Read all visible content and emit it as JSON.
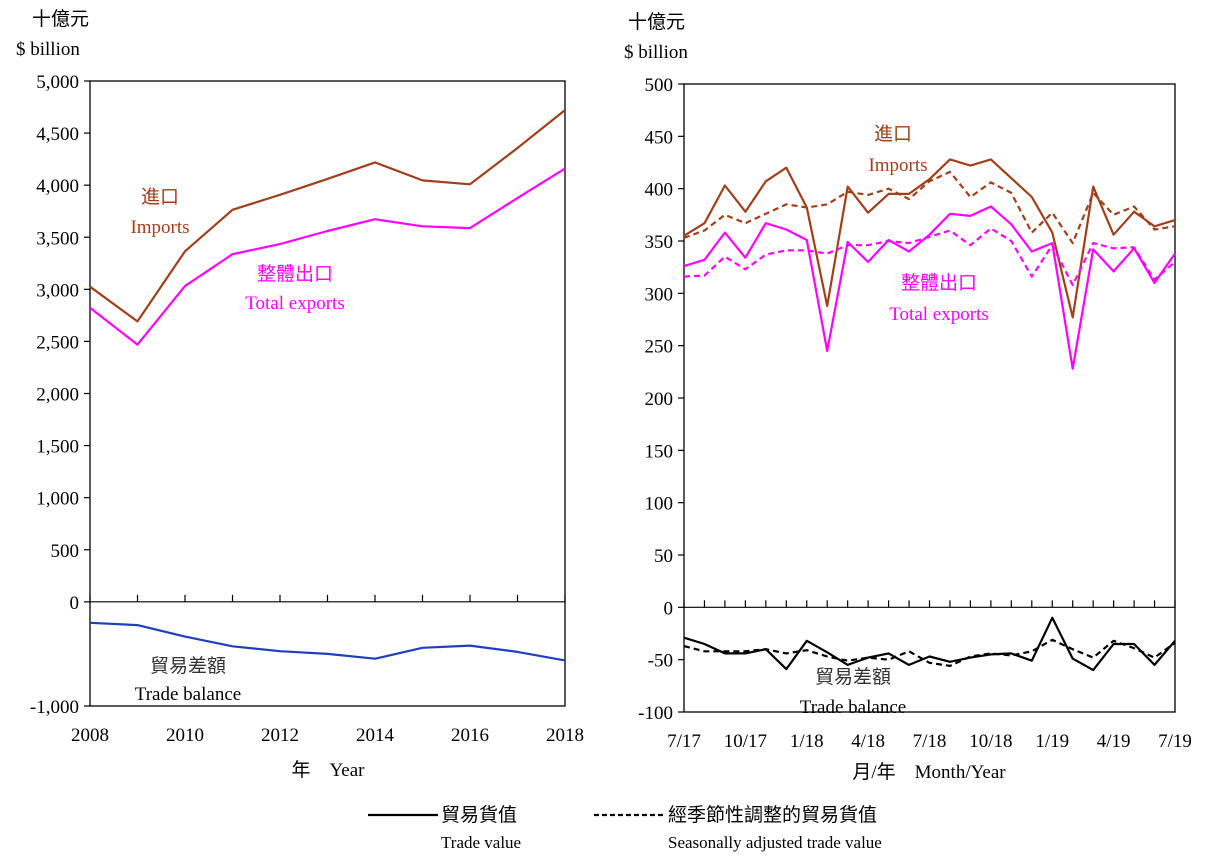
{
  "chart_data": [
    {
      "type": "line",
      "unit_zh": "十億元",
      "unit_en": "$ billion",
      "ylim": [
        -1000,
        5000
      ],
      "yticks": [
        -1000,
        0,
        500,
        1000,
        1500,
        2000,
        2500,
        3000,
        3500,
        4000,
        4500,
        5000
      ],
      "ytick_labels": [
        "-1,000",
        "0",
        "500",
        "1,000",
        "1,500",
        "2,000",
        "2,500",
        "3,000",
        "3,500",
        "4,000",
        "4,500",
        "5,000"
      ],
      "x": [
        2008,
        2009,
        2010,
        2011,
        2012,
        2013,
        2014,
        2015,
        2016,
        2017,
        2018
      ],
      "xtick_labels": [
        "2008",
        "2010",
        "2012",
        "2014",
        "2016",
        "2018"
      ],
      "xlabel": "年　Year",
      "series": [
        {
          "name_zh": "進口",
          "name_en": "Imports",
          "color": "#A0401A",
          "values": [
            3025,
            2692,
            3365,
            3764,
            3908,
            4060,
            4219,
            4046,
            4008,
            4357,
            4721
          ]
        },
        {
          "name_zh": "整體出口",
          "name_en": "Total exports",
          "color": "#FF00FF",
          "values": [
            2824,
            2469,
            3031,
            3337,
            3434,
            3560,
            3673,
            3605,
            3588,
            3876,
            4159
          ]
        },
        {
          "name_zh": "貿易差額",
          "name_en": "Trade balance",
          "color": "#1F3FBF",
          "values": [
            -201,
            -223,
            -334,
            -427,
            -474,
            -500,
            -546,
            -441,
            -420,
            -481,
            -562
          ]
        }
      ]
    },
    {
      "type": "line",
      "unit_zh": "十億元",
      "unit_en": "$ billion",
      "ylim": [
        -100,
        500
      ],
      "yticks": [
        -100,
        -50,
        0,
        50,
        100,
        150,
        200,
        250,
        300,
        350,
        400,
        450,
        500
      ],
      "ytick_labels": [
        "-100",
        "-50",
        "0",
        "50",
        "100",
        "150",
        "200",
        "250",
        "300",
        "350",
        "400",
        "450",
        "500"
      ],
      "x": [
        "7/17",
        "8/17",
        "9/17",
        "10/17",
        "11/17",
        "12/17",
        "1/18",
        "2/18",
        "3/18",
        "4/18",
        "5/18",
        "6/18",
        "7/18",
        "8/18",
        "9/18",
        "10/18",
        "11/18",
        "12/18",
        "1/19",
        "2/19",
        "3/19",
        "4/19",
        "5/19",
        "6/19",
        "7/19"
      ],
      "xtick_labels": [
        "7/17",
        "10/17",
        "1/18",
        "4/18",
        "7/18",
        "10/18",
        "1/19",
        "4/19",
        "7/19"
      ],
      "xlabel": "月/年　Month/Year",
      "series": [
        {
          "name_zh": "進口",
          "name_en": "Imports",
          "color": "#A0401A",
          "style": "solid",
          "values": [
            355,
            367,
            403,
            378,
            407,
            420,
            382,
            288,
            402,
            377,
            395,
            395,
            409,
            428,
            422,
            428,
            410,
            392,
            358,
            277,
            402,
            356,
            378,
            364,
            370
          ]
        },
        {
          "name_zh": "進口",
          "name_en": "Imports",
          "color": "#A0401A",
          "style": "dashed",
          "values": [
            353,
            360,
            375,
            367,
            376,
            385,
            382,
            385,
            397,
            394,
            400,
            390,
            407,
            416,
            392,
            406,
            396,
            358,
            377,
            348,
            396,
            375,
            383,
            361,
            364
          ]
        },
        {
          "name_zh": "整體出口",
          "name_en": "Total exports",
          "color": "#FF00FF",
          "style": "solid",
          "values": [
            326,
            332,
            358,
            334,
            367,
            361,
            351,
            245,
            349,
            330,
            351,
            340,
            356,
            376,
            374,
            383,
            366,
            340,
            348,
            228,
            342,
            321,
            343,
            310,
            338
          ]
        },
        {
          "name_zh": "整體出口",
          "name_en": "Total exports",
          "color": "#FF00FF",
          "style": "dashed",
          "values": [
            316,
            317,
            335,
            323,
            337,
            341,
            341,
            338,
            346,
            346,
            350,
            348,
            354,
            360,
            346,
            362,
            350,
            316,
            346,
            308,
            348,
            343,
            344,
            313,
            330
          ]
        },
        {
          "name_zh": "貿易差額",
          "name_en": "Trade balance",
          "color": "#000000",
          "style": "solid",
          "values": [
            -29,
            -35,
            -44,
            -44,
            -40,
            -59,
            -32,
            -43,
            -55,
            -48,
            -44,
            -55,
            -47,
            -52,
            -48,
            -45,
            -44,
            -51,
            -10,
            -49,
            -60,
            -35,
            -35,
            -55,
            -32
          ]
        },
        {
          "name_zh": "貿易差額",
          "name_en": "Trade balance",
          "color": "#000000",
          "style": "dashed",
          "values": [
            -37,
            -42,
            -42,
            -42,
            -40,
            -44,
            -41,
            -47,
            -51,
            -48,
            -50,
            -42,
            -53,
            -56,
            -47,
            -44,
            -46,
            -42,
            -31,
            -40,
            -48,
            -32,
            -39,
            -48,
            -34
          ]
        }
      ]
    }
  ],
  "legend": {
    "solid_zh": "貿易貨值",
    "solid_en": "Trade value",
    "dashed_zh": "經季節性調整的貿易貨值",
    "dashed_en": "Seasonally adjusted trade value"
  }
}
